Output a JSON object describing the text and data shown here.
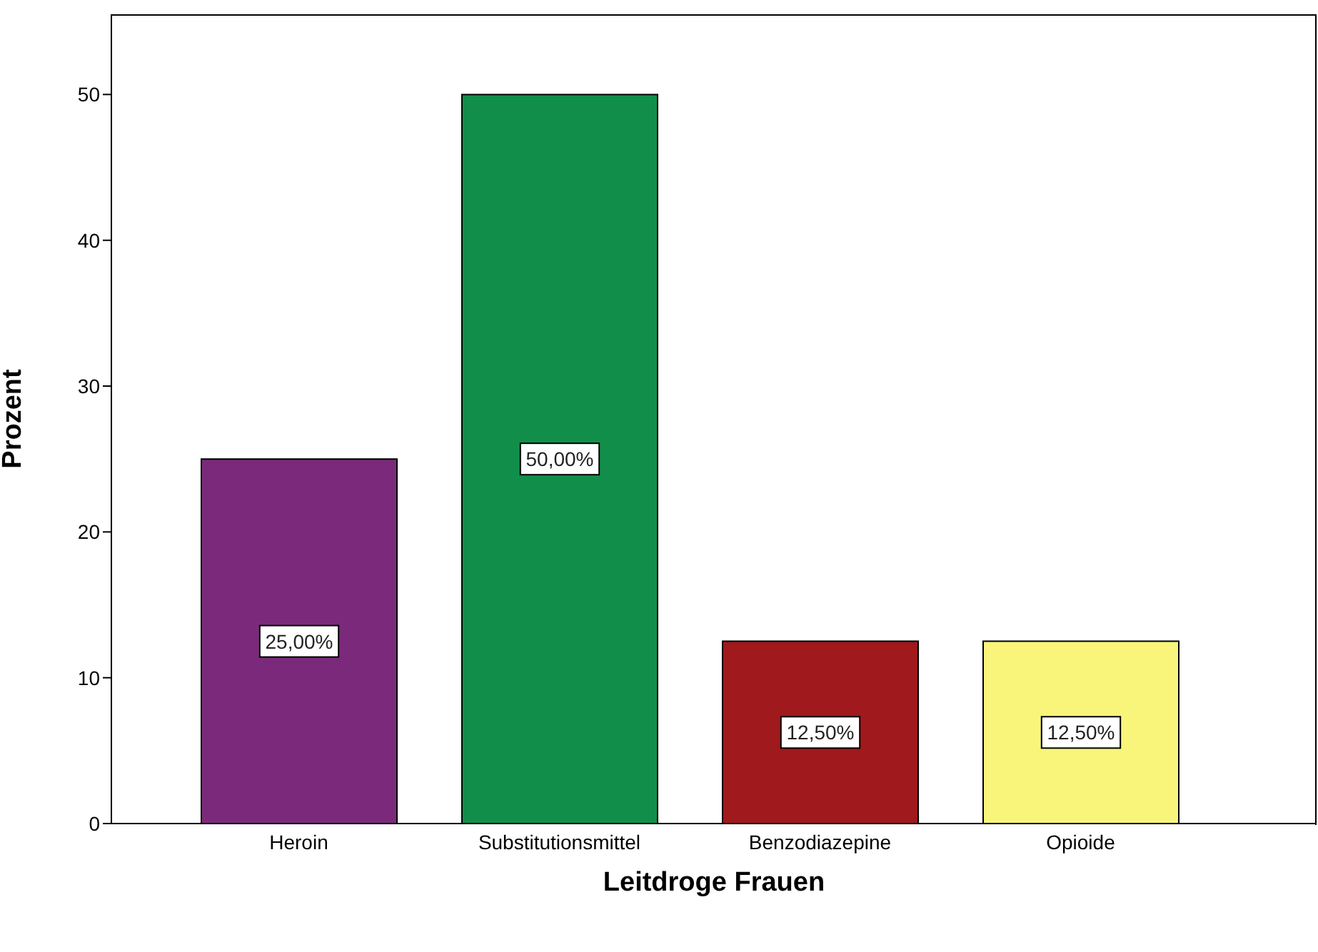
{
  "chart_data": {
    "type": "bar",
    "xlabel": "Leitdroge Frauen",
    "ylabel": "Prozent",
    "categories": [
      "Heroin",
      "Substitutionsmittel",
      "Benzodiazepine",
      "Opioide"
    ],
    "values": [
      25,
      50,
      12.5,
      12.5
    ],
    "colors": [
      "#7b2a7b",
      "#118f4a",
      "#a0191c",
      "#f8f57a"
    ],
    "value_labels": [
      "25,00%",
      "50,00%",
      "12,50%",
      "12,50%"
    ],
    "ylim": [
      0,
      55.5
    ],
    "yticks": [
      0,
      10,
      20,
      30,
      40,
      50
    ],
    "grid": false,
    "legend": false
  }
}
